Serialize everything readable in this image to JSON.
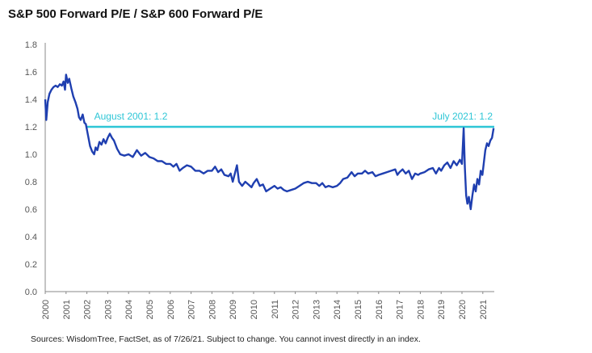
{
  "chart_data": {
    "type": "line",
    "title": "S&P 500 Forward P/E / S&P 600 Forward P/E",
    "xlabel": "",
    "ylabel": "",
    "ylim": [
      0,
      1.8
    ],
    "xlim": [
      2000,
      2021.55
    ],
    "y_ticks": [
      "0.0",
      "0.2",
      "0.4",
      "0.6",
      "0.8",
      "1.0",
      "1.2",
      "1.4",
      "1.6",
      "1.8"
    ],
    "x_ticks": [
      "2000",
      "2001",
      "2002",
      "2003",
      "2004",
      "2005",
      "2006",
      "2007",
      "2008",
      "2009",
      "2010",
      "2011",
      "2012",
      "2013",
      "2014",
      "2015",
      "2016",
      "2017",
      "2018",
      "2019",
      "2020",
      "2021"
    ],
    "grid": false,
    "legend": "none",
    "series": [
      {
        "color": "#1f3fb0",
        "points": [
          [
            2000.0,
            1.4
          ],
          [
            2000.05,
            1.25
          ],
          [
            2000.12,
            1.38
          ],
          [
            2000.2,
            1.44
          ],
          [
            2000.3,
            1.47
          ],
          [
            2000.4,
            1.49
          ],
          [
            2000.5,
            1.5
          ],
          [
            2000.6,
            1.49
          ],
          [
            2000.7,
            1.51
          ],
          [
            2000.8,
            1.5
          ],
          [
            2000.88,
            1.53
          ],
          [
            2000.95,
            1.47
          ],
          [
            2001.0,
            1.58
          ],
          [
            2001.08,
            1.52
          ],
          [
            2001.15,
            1.55
          ],
          [
            2001.25,
            1.48
          ],
          [
            2001.35,
            1.42
          ],
          [
            2001.45,
            1.38
          ],
          [
            2001.55,
            1.33
          ],
          [
            2001.62,
            1.27
          ],
          [
            2001.7,
            1.25
          ],
          [
            2001.8,
            1.29
          ],
          [
            2001.88,
            1.23
          ],
          [
            2001.95,
            1.22
          ],
          [
            2002.05,
            1.14
          ],
          [
            2002.15,
            1.06
          ],
          [
            2002.25,
            1.02
          ],
          [
            2002.35,
            1.0
          ],
          [
            2002.42,
            1.05
          ],
          [
            2002.5,
            1.03
          ],
          [
            2002.6,
            1.09
          ],
          [
            2002.7,
            1.07
          ],
          [
            2002.8,
            1.11
          ],
          [
            2002.9,
            1.08
          ],
          [
            2003.0,
            1.12
          ],
          [
            2003.1,
            1.15
          ],
          [
            2003.2,
            1.12
          ],
          [
            2003.3,
            1.1
          ],
          [
            2003.45,
            1.04
          ],
          [
            2003.6,
            1.0
          ],
          [
            2003.8,
            0.99
          ],
          [
            2004.0,
            1.0
          ],
          [
            2004.2,
            0.98
          ],
          [
            2004.4,
            1.03
          ],
          [
            2004.6,
            0.99
          ],
          [
            2004.8,
            1.01
          ],
          [
            2005.0,
            0.98
          ],
          [
            2005.2,
            0.97
          ],
          [
            2005.4,
            0.95
          ],
          [
            2005.6,
            0.95
          ],
          [
            2005.8,
            0.93
          ],
          [
            2006.0,
            0.93
          ],
          [
            2006.15,
            0.91
          ],
          [
            2006.3,
            0.93
          ],
          [
            2006.45,
            0.88
          ],
          [
            2006.6,
            0.9
          ],
          [
            2006.8,
            0.92
          ],
          [
            2007.0,
            0.91
          ],
          [
            2007.2,
            0.88
          ],
          [
            2007.4,
            0.88
          ],
          [
            2007.6,
            0.86
          ],
          [
            2007.8,
            0.88
          ],
          [
            2008.0,
            0.88
          ],
          [
            2008.15,
            0.91
          ],
          [
            2008.3,
            0.87
          ],
          [
            2008.45,
            0.89
          ],
          [
            2008.6,
            0.85
          ],
          [
            2008.8,
            0.84
          ],
          [
            2008.9,
            0.86
          ],
          [
            2009.0,
            0.8
          ],
          [
            2009.1,
            0.86
          ],
          [
            2009.2,
            0.92
          ],
          [
            2009.3,
            0.8
          ],
          [
            2009.45,
            0.77
          ],
          [
            2009.6,
            0.8
          ],
          [
            2009.75,
            0.78
          ],
          [
            2009.9,
            0.76
          ],
          [
            2010.0,
            0.79
          ],
          [
            2010.15,
            0.82
          ],
          [
            2010.3,
            0.77
          ],
          [
            2010.45,
            0.78
          ],
          [
            2010.6,
            0.73
          ],
          [
            2010.8,
            0.75
          ],
          [
            2011.0,
            0.77
          ],
          [
            2011.15,
            0.75
          ],
          [
            2011.3,
            0.76
          ],
          [
            2011.45,
            0.74
          ],
          [
            2011.6,
            0.73
          ],
          [
            2011.8,
            0.74
          ],
          [
            2012.0,
            0.75
          ],
          [
            2012.2,
            0.77
          ],
          [
            2012.4,
            0.79
          ],
          [
            2012.6,
            0.8
          ],
          [
            2012.8,
            0.79
          ],
          [
            2013.0,
            0.79
          ],
          [
            2013.15,
            0.77
          ],
          [
            2013.3,
            0.79
          ],
          [
            2013.45,
            0.76
          ],
          [
            2013.6,
            0.77
          ],
          [
            2013.8,
            0.76
          ],
          [
            2014.0,
            0.77
          ],
          [
            2014.15,
            0.79
          ],
          [
            2014.3,
            0.82
          ],
          [
            2014.5,
            0.83
          ],
          [
            2014.7,
            0.87
          ],
          [
            2014.85,
            0.84
          ],
          [
            2015.0,
            0.86
          ],
          [
            2015.2,
            0.86
          ],
          [
            2015.35,
            0.88
          ],
          [
            2015.5,
            0.86
          ],
          [
            2015.7,
            0.87
          ],
          [
            2015.85,
            0.84
          ],
          [
            2016.0,
            0.85
          ],
          [
            2016.2,
            0.86
          ],
          [
            2016.4,
            0.87
          ],
          [
            2016.6,
            0.88
          ],
          [
            2016.8,
            0.89
          ],
          [
            2016.9,
            0.85
          ],
          [
            2017.0,
            0.87
          ],
          [
            2017.15,
            0.89
          ],
          [
            2017.3,
            0.86
          ],
          [
            2017.45,
            0.88
          ],
          [
            2017.6,
            0.82
          ],
          [
            2017.75,
            0.86
          ],
          [
            2017.9,
            0.85
          ],
          [
            2018.0,
            0.86
          ],
          [
            2018.2,
            0.87
          ],
          [
            2018.4,
            0.89
          ],
          [
            2018.6,
            0.9
          ],
          [
            2018.75,
            0.86
          ],
          [
            2018.9,
            0.9
          ],
          [
            2019.0,
            0.88
          ],
          [
            2019.15,
            0.92
          ],
          [
            2019.3,
            0.94
          ],
          [
            2019.45,
            0.9
          ],
          [
            2019.6,
            0.95
          ],
          [
            2019.75,
            0.92
          ],
          [
            2019.9,
            0.96
          ],
          [
            2020.0,
            0.93
          ],
          [
            2020.08,
            1.19
          ],
          [
            2020.14,
            0.9
          ],
          [
            2020.2,
            0.7
          ],
          [
            2020.26,
            0.64
          ],
          [
            2020.33,
            0.69
          ],
          [
            2020.42,
            0.6
          ],
          [
            2020.5,
            0.7
          ],
          [
            2020.58,
            0.78
          ],
          [
            2020.66,
            0.73
          ],
          [
            2020.74,
            0.82
          ],
          [
            2020.82,
            0.78
          ],
          [
            2020.9,
            0.88
          ],
          [
            2020.98,
            0.85
          ],
          [
            2021.05,
            0.94
          ],
          [
            2021.12,
            1.03
          ],
          [
            2021.2,
            1.08
          ],
          [
            2021.28,
            1.06
          ],
          [
            2021.36,
            1.1
          ],
          [
            2021.44,
            1.12
          ],
          [
            2021.52,
            1.19
          ]
        ]
      }
    ],
    "reference_line": {
      "value": 1.2,
      "from": 2002,
      "to": 2021.55,
      "color": "#2ec6d6"
    },
    "annotations": [
      {
        "text": "August 2001: 1.2",
        "color": "#2ec6d6"
      },
      {
        "text": "July 2021: 1.2",
        "color": "#2ec6d6"
      }
    ]
  },
  "footer": {
    "source": "Sources: WisdomTree, FactSet, as of 7/26/21. Subject to change. You cannot invest directly in an index."
  }
}
